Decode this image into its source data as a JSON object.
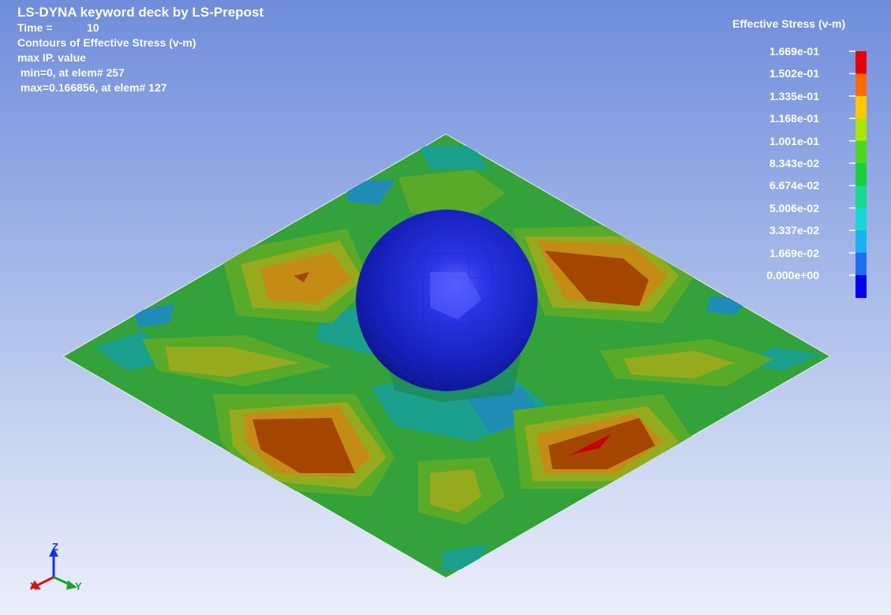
{
  "header": {
    "title": "LS-DYNA keyword deck by LS-Prepost",
    "time_label": "Time =",
    "time_value": "10",
    "contour_label": "Contours of Effective Stress (v-m)",
    "ip_label": "max IP. value",
    "min_line": " min=0, at elem# 257",
    "max_line": " max=0.166856, at elem# 127"
  },
  "legend": {
    "title": "Effective Stress (v-m)",
    "ticks": [
      "1.669e-01",
      "1.502e-01",
      "1.335e-01",
      "1.168e-01",
      "1.001e-01",
      "8.343e-02",
      "6.674e-02",
      "5.006e-02",
      "3.337e-02",
      "1.669e-02",
      "0.000e+00"
    ],
    "colors": [
      "#e60000",
      "#ff6a00",
      "#ffc800",
      "#a8e600",
      "#4fd61e",
      "#18cf3c",
      "#18d790",
      "#19d7d7",
      "#18b4f0",
      "#1e6ef0",
      "#0000f0"
    ]
  },
  "model": {
    "plate_colors": {
      "base": "#34a23a",
      "green_light": "#5aaa2a",
      "yellow": "#96aa1e",
      "orange": "#c48c14",
      "red": "#a54600",
      "teal": "#1aa08c",
      "blue_teal": "#1e8cb4"
    },
    "sphere_color": "#101bc0"
  },
  "axes": {
    "z_label": "Z",
    "x_label": "X",
    "y_label": "Y"
  }
}
